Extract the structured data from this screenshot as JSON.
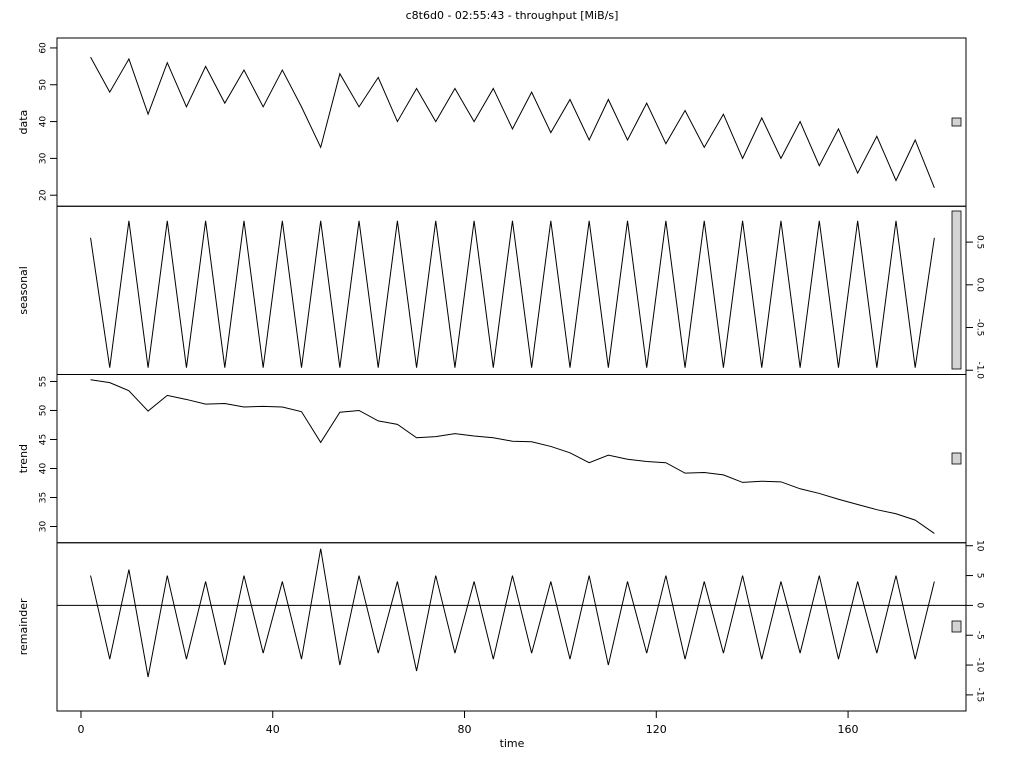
{
  "chart_data": [
    {
      "type": "line",
      "title": "c8t6d0 - 02:55:43 - throughput [MiB/s]",
      "ylabel": "data",
      "axis_side": "left",
      "color": "#000000",
      "x": [
        2,
        6,
        10,
        14,
        18,
        22,
        26,
        30,
        34,
        38,
        42,
        46,
        50,
        54,
        58,
        62,
        66,
        70,
        74,
        78,
        82,
        86,
        90,
        94,
        98,
        102,
        106,
        110,
        114,
        118,
        122,
        126,
        130,
        134,
        138,
        142,
        146,
        150,
        154,
        158,
        162,
        166,
        170,
        174,
        178
      ],
      "values": [
        57.5,
        48,
        57,
        42,
        56,
        44,
        55,
        45,
        54,
        44,
        54,
        44,
        33,
        53,
        44,
        52,
        40,
        49,
        40,
        49,
        40,
        49,
        38,
        48,
        37,
        46,
        35,
        46,
        35,
        45,
        34,
        43,
        33,
        42,
        30,
        41,
        30,
        40,
        28,
        38,
        26,
        36,
        24,
        35,
        22
      ],
      "xlim": [
        -5,
        184.6
      ],
      "ylim": [
        17,
        62.7
      ],
      "yticks": [
        20,
        30,
        40,
        50,
        60
      ]
    },
    {
      "type": "line",
      "ylabel": "seasonal",
      "axis_side": "right",
      "color": "#000000",
      "x": [
        2,
        6,
        10,
        14,
        18,
        22,
        26,
        30,
        34,
        38,
        42,
        46,
        50,
        54,
        58,
        62,
        66,
        70,
        74,
        78,
        82,
        86,
        90,
        94,
        98,
        102,
        106,
        110,
        114,
        118,
        122,
        126,
        130,
        134,
        138,
        142,
        146,
        150,
        154,
        158,
        162,
        166,
        170,
        174,
        178
      ],
      "values": [
        0.55,
        -0.97,
        0.75,
        -0.97,
        0.75,
        -0.97,
        0.75,
        -0.97,
        0.75,
        -0.97,
        0.75,
        -0.97,
        0.75,
        -0.97,
        0.75,
        -0.97,
        0.75,
        -0.97,
        0.75,
        -0.97,
        0.75,
        -0.97,
        0.75,
        -0.97,
        0.75,
        -0.97,
        0.75,
        -0.97,
        0.75,
        -0.97,
        0.75,
        -0.97,
        0.75,
        -0.97,
        0.75,
        -0.97,
        0.75,
        -0.97,
        0.75,
        -0.97,
        0.75,
        -0.97,
        0.75,
        -0.97,
        0.55
      ],
      "xlim": [
        -5,
        184.6
      ],
      "ylim": [
        -1.05,
        0.92
      ],
      "yticks": [
        {
          "value": -1,
          "label": "-1.0"
        },
        -0.5,
        {
          "value": 0,
          "label": "0.0"
        },
        0.5
      ]
    },
    {
      "type": "line",
      "ylabel": "trend",
      "axis_side": "left",
      "color": "#000000",
      "x": [
        2,
        6,
        10,
        14,
        18,
        22,
        26,
        30,
        34,
        38,
        42,
        46,
        50,
        54,
        58,
        62,
        66,
        70,
        74,
        78,
        82,
        86,
        90,
        94,
        98,
        102,
        106,
        110,
        114,
        118,
        122,
        126,
        130,
        134,
        138,
        142,
        146,
        150,
        154,
        158,
        162,
        166,
        170,
        174,
        178
      ],
      "values": [
        55.3,
        54.8,
        53.4,
        49.9,
        52.6,
        51.9,
        51.1,
        51.2,
        50.6,
        50.7,
        50.6,
        49.8,
        44.5,
        49.7,
        50,
        48.2,
        47.6,
        45.3,
        45.5,
        46,
        45.6,
        45.3,
        44.7,
        44.6,
        43.8,
        42.7,
        41,
        42.3,
        41.6,
        41.2,
        41,
        39.2,
        39.3,
        38.9,
        37.6,
        37.8,
        37.7,
        36.5,
        35.7,
        34.7,
        33.8,
        32.9,
        32.2,
        31.1,
        28.8
      ],
      "xlim": [
        -5,
        184.6
      ],
      "ylim": [
        27.2,
        56.2
      ],
      "yticks": [
        30,
        35,
        40,
        45,
        50,
        55
      ]
    },
    {
      "type": "line",
      "ylabel": "remainder",
      "axis_side": "right",
      "color": "#000000",
      "xlabel": "time",
      "reference_line": 0,
      "x": [
        2,
        6,
        10,
        14,
        18,
        22,
        26,
        30,
        34,
        38,
        42,
        46,
        50,
        54,
        58,
        62,
        66,
        70,
        74,
        78,
        82,
        86,
        90,
        94,
        98,
        102,
        106,
        110,
        114,
        118,
        122,
        126,
        130,
        134,
        138,
        142,
        146,
        150,
        154,
        158,
        162,
        166,
        170,
        174,
        178
      ],
      "values": [
        5,
        -9,
        6,
        -12,
        5,
        -9,
        4,
        -10,
        5,
        -8,
        4,
        -9,
        9.5,
        -10,
        5,
        -8,
        4,
        -11,
        5,
        -8,
        4,
        -9,
        5,
        -8,
        4,
        -9,
        5,
        -10,
        4,
        -8,
        5,
        -9,
        4,
        -8,
        5,
        -9,
        4,
        -8,
        5,
        -9,
        4,
        -8,
        5,
        -9,
        4
      ],
      "xlim": [
        -5,
        184.6
      ],
      "ylim": [
        -17.7,
        10.5
      ],
      "yticks": [
        -15,
        -10,
        -5,
        0,
        5,
        10
      ],
      "xticks": [
        0,
        40,
        80,
        120,
        160
      ]
    }
  ]
}
